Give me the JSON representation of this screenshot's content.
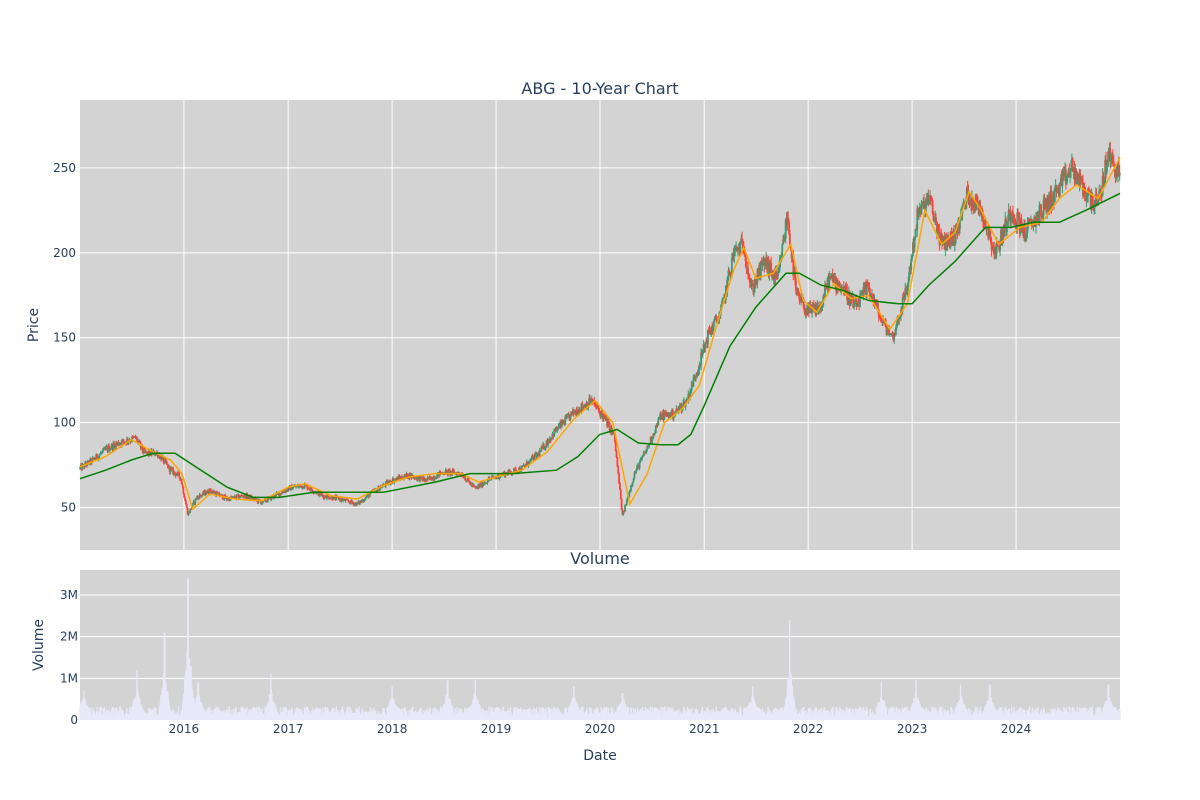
{
  "chart_data": [
    {
      "type": "candlestick",
      "title": "ABG - 10-Year Chart",
      "ylabel": "Price",
      "xlabel": "",
      "xlim": [
        "2015-01-01",
        "2024-12-31"
      ],
      "ylim": [
        25,
        290
      ],
      "y_ticks": [
        50,
        100,
        150,
        200,
        250
      ],
      "x_ticks": [
        "2016",
        "2017",
        "2018",
        "2019",
        "2020",
        "2021",
        "2022",
        "2023",
        "2024"
      ],
      "grid": true,
      "colors": {
        "background": "#d3d3d3",
        "up": "#3d9970",
        "down": "#ff4136",
        "ma_short": "#ffa500",
        "ma_long": "#008000"
      },
      "price_path": [
        [
          "2015-01-01",
          73
        ],
        [
          "2015-02-15",
          78
        ],
        [
          "2015-04-01",
          84
        ],
        [
          "2015-05-15",
          88
        ],
        [
          "2015-07-15",
          91
        ],
        [
          "2015-08-15",
          82
        ],
        [
          "2015-10-01",
          82
        ],
        [
          "2015-11-15",
          72
        ],
        [
          "2015-12-20",
          68
        ],
        [
          "2016-01-15",
          46
        ],
        [
          "2016-02-15",
          56
        ],
        [
          "2016-04-01",
          60
        ],
        [
          "2016-06-01",
          55
        ],
        [
          "2016-08-01",
          57
        ],
        [
          "2016-10-01",
          53
        ],
        [
          "2016-11-15",
          57
        ],
        [
          "2017-01-15",
          62
        ],
        [
          "2017-03-01",
          63
        ],
        [
          "2017-05-01",
          57
        ],
        [
          "2017-07-01",
          55
        ],
        [
          "2017-09-01",
          52
        ],
        [
          "2017-11-01",
          60
        ],
        [
          "2018-01-01",
          66
        ],
        [
          "2018-03-01",
          69
        ],
        [
          "2018-05-01",
          66
        ],
        [
          "2018-07-01",
          71
        ],
        [
          "2018-09-01",
          70
        ],
        [
          "2018-10-20",
          61
        ],
        [
          "2018-12-01",
          66
        ],
        [
          "2019-02-01",
          70
        ],
        [
          "2019-04-01",
          73
        ],
        [
          "2019-06-01",
          82
        ],
        [
          "2019-08-01",
          96
        ],
        [
          "2019-10-01",
          106
        ],
        [
          "2019-12-01",
          113
        ],
        [
          "2020-01-15",
          103
        ],
        [
          "2020-02-20",
          92
        ],
        [
          "2020-03-20",
          45
        ],
        [
          "2020-05-01",
          70
        ],
        [
          "2020-06-15",
          85
        ],
        [
          "2020-08-01",
          104
        ],
        [
          "2020-09-15",
          105
        ],
        [
          "2020-11-01",
          113
        ],
        [
          "2020-12-15",
          135
        ],
        [
          "2021-01-15",
          152
        ],
        [
          "2021-03-01",
          165
        ],
        [
          "2021-04-15",
          200
        ],
        [
          "2021-05-20",
          205
        ],
        [
          "2021-06-15",
          178
        ],
        [
          "2021-08-01",
          195
        ],
        [
          "2021-09-15",
          183
        ],
        [
          "2021-10-20",
          222
        ],
        [
          "2021-11-20",
          175
        ],
        [
          "2022-01-01",
          165
        ],
        [
          "2022-02-15",
          168
        ],
        [
          "2022-03-15",
          185
        ],
        [
          "2022-05-01",
          180
        ],
        [
          "2022-06-15",
          168
        ],
        [
          "2022-08-01",
          180
        ],
        [
          "2022-09-15",
          160
        ],
        [
          "2022-10-25",
          150
        ],
        [
          "2022-12-15",
          180
        ],
        [
          "2023-01-20",
          222
        ],
        [
          "2023-03-01",
          232
        ],
        [
          "2023-04-15",
          205
        ],
        [
          "2023-06-01",
          210
        ],
        [
          "2023-07-15",
          235
        ],
        [
          "2023-09-01",
          225
        ],
        [
          "2023-10-20",
          200
        ],
        [
          "2023-12-15",
          225
        ],
        [
          "2024-02-01",
          212
        ],
        [
          "2024-04-01",
          225
        ],
        [
          "2024-06-01",
          238
        ],
        [
          "2024-07-15",
          250
        ],
        [
          "2024-09-01",
          235
        ],
        [
          "2024-10-15",
          228
        ],
        [
          "2024-11-20",
          258
        ],
        [
          "2024-12-31",
          245
        ]
      ],
      "ma_short": [
        [
          "2015-01-01",
          74
        ],
        [
          "2015-04-01",
          80
        ],
        [
          "2015-07-01",
          90
        ],
        [
          "2015-09-01",
          84
        ],
        [
          "2015-11-15",
          78
        ],
        [
          "2015-12-25",
          70
        ],
        [
          "2016-02-01",
          49
        ],
        [
          "2016-04-01",
          58
        ],
        [
          "2016-07-01",
          55
        ],
        [
          "2016-10-01",
          54
        ],
        [
          "2017-01-01",
          62
        ],
        [
          "2017-03-01",
          64
        ],
        [
          "2017-06-01",
          57
        ],
        [
          "2017-09-01",
          55
        ],
        [
          "2017-12-01",
          63
        ],
        [
          "2018-03-01",
          68
        ],
        [
          "2018-06-01",
          70
        ],
        [
          "2018-09-01",
          70
        ],
        [
          "2018-11-01",
          65
        ],
        [
          "2019-01-01",
          68
        ],
        [
          "2019-04-01",
          72
        ],
        [
          "2019-07-01",
          83
        ],
        [
          "2019-10-01",
          102
        ],
        [
          "2019-12-15",
          113
        ],
        [
          "2020-02-15",
          100
        ],
        [
          "2020-04-15",
          52
        ],
        [
          "2020-06-15",
          70
        ],
        [
          "2020-08-15",
          100
        ],
        [
          "2020-10-15",
          108
        ],
        [
          "2020-12-15",
          122
        ],
        [
          "2021-02-15",
          158
        ],
        [
          "2021-04-15",
          190
        ],
        [
          "2021-05-20",
          203
        ],
        [
          "2021-07-01",
          185
        ],
        [
          "2021-09-01",
          188
        ],
        [
          "2021-11-01",
          205
        ],
        [
          "2021-12-15",
          172
        ],
        [
          "2022-02-01",
          165
        ],
        [
          "2022-04-01",
          182
        ],
        [
          "2022-06-01",
          173
        ],
        [
          "2022-08-01",
          175
        ],
        [
          "2022-10-15",
          155
        ],
        [
          "2022-12-15",
          170
        ],
        [
          "2023-02-15",
          225
        ],
        [
          "2023-04-15",
          205
        ],
        [
          "2023-06-01",
          212
        ],
        [
          "2023-07-20",
          236
        ],
        [
          "2023-09-01",
          225
        ],
        [
          "2023-11-01",
          205
        ],
        [
          "2024-01-15",
          215
        ],
        [
          "2024-04-01",
          218
        ],
        [
          "2024-06-01",
          232
        ],
        [
          "2024-08-01",
          240
        ],
        [
          "2024-10-15",
          232
        ],
        [
          "2024-12-31",
          256
        ]
      ],
      "ma_long": [
        [
          "2015-01-01",
          67
        ],
        [
          "2015-04-01",
          72
        ],
        [
          "2015-07-01",
          78
        ],
        [
          "2015-09-15",
          82
        ],
        [
          "2015-12-01",
          82
        ],
        [
          "2016-03-01",
          72
        ],
        [
          "2016-06-01",
          62
        ],
        [
          "2016-09-01",
          56
        ],
        [
          "2016-12-01",
          56
        ],
        [
          "2017-04-01",
          59
        ],
        [
          "2017-07-01",
          59
        ],
        [
          "2017-12-01",
          59
        ],
        [
          "2018-06-01",
          65
        ],
        [
          "2018-10-01",
          70
        ],
        [
          "2019-03-01",
          70
        ],
        [
          "2019-08-01",
          72
        ],
        [
          "2019-10-15",
          80
        ],
        [
          "2019-12-31",
          93
        ],
        [
          "2020-03-01",
          96
        ],
        [
          "2020-05-15",
          88
        ],
        [
          "2020-08-01",
          87
        ],
        [
          "2020-10-01",
          87
        ],
        [
          "2020-11-15",
          93
        ],
        [
          "2021-01-01",
          110
        ],
        [
          "2021-04-01",
          145
        ],
        [
          "2021-07-01",
          168
        ],
        [
          "2021-10-15",
          188
        ],
        [
          "2021-12-01",
          188
        ],
        [
          "2022-02-15",
          181
        ],
        [
          "2022-05-01",
          178
        ],
        [
          "2022-08-01",
          172
        ],
        [
          "2022-11-15",
          170
        ],
        [
          "2023-01-01",
          170
        ],
        [
          "2023-03-01",
          181
        ],
        [
          "2023-06-01",
          195
        ],
        [
          "2023-09-15",
          215
        ],
        [
          "2023-12-15",
          215
        ],
        [
          "2024-03-01",
          218
        ],
        [
          "2024-06-01",
          218
        ],
        [
          "2024-09-01",
          225
        ],
        [
          "2024-12-31",
          235
        ]
      ]
    },
    {
      "type": "bar",
      "title": "Volume",
      "ylabel": "Volume",
      "xlabel": "Date",
      "ylim": [
        0,
        3600000
      ],
      "y_ticks": [
        {
          "value": 0,
          "label": "0"
        },
        {
          "value": 1000000,
          "label": "1M"
        },
        {
          "value": 2000000,
          "label": "2M"
        },
        {
          "value": 3000000,
          "label": "3M"
        }
      ],
      "x_ticks": [
        "2016",
        "2017",
        "2018",
        "2019",
        "2020",
        "2021",
        "2022",
        "2023",
        "2024"
      ],
      "bar_color": "#e8e8f8",
      "baseline_volume": 250000,
      "spikes": [
        [
          "2015-01-15",
          700000
        ],
        [
          "2015-07-20",
          1200000
        ],
        [
          "2015-10-25",
          2100000
        ],
        [
          "2016-01-15",
          3400000
        ],
        [
          "2016-01-25",
          1300000
        ],
        [
          "2016-02-20",
          900000
        ],
        [
          "2016-11-01",
          1100000
        ],
        [
          "2018-01-01",
          800000
        ],
        [
          "2018-07-15",
          950000
        ],
        [
          "2018-10-20",
          950000
        ],
        [
          "2019-10-01",
          800000
        ],
        [
          "2020-03-20",
          650000
        ],
        [
          "2021-06-20",
          800000
        ],
        [
          "2021-10-28",
          2400000
        ],
        [
          "2022-09-15",
          900000
        ],
        [
          "2023-01-15",
          950000
        ],
        [
          "2023-06-20",
          850000
        ],
        [
          "2023-10-01",
          850000
        ],
        [
          "2024-11-20",
          850000
        ]
      ]
    }
  ]
}
